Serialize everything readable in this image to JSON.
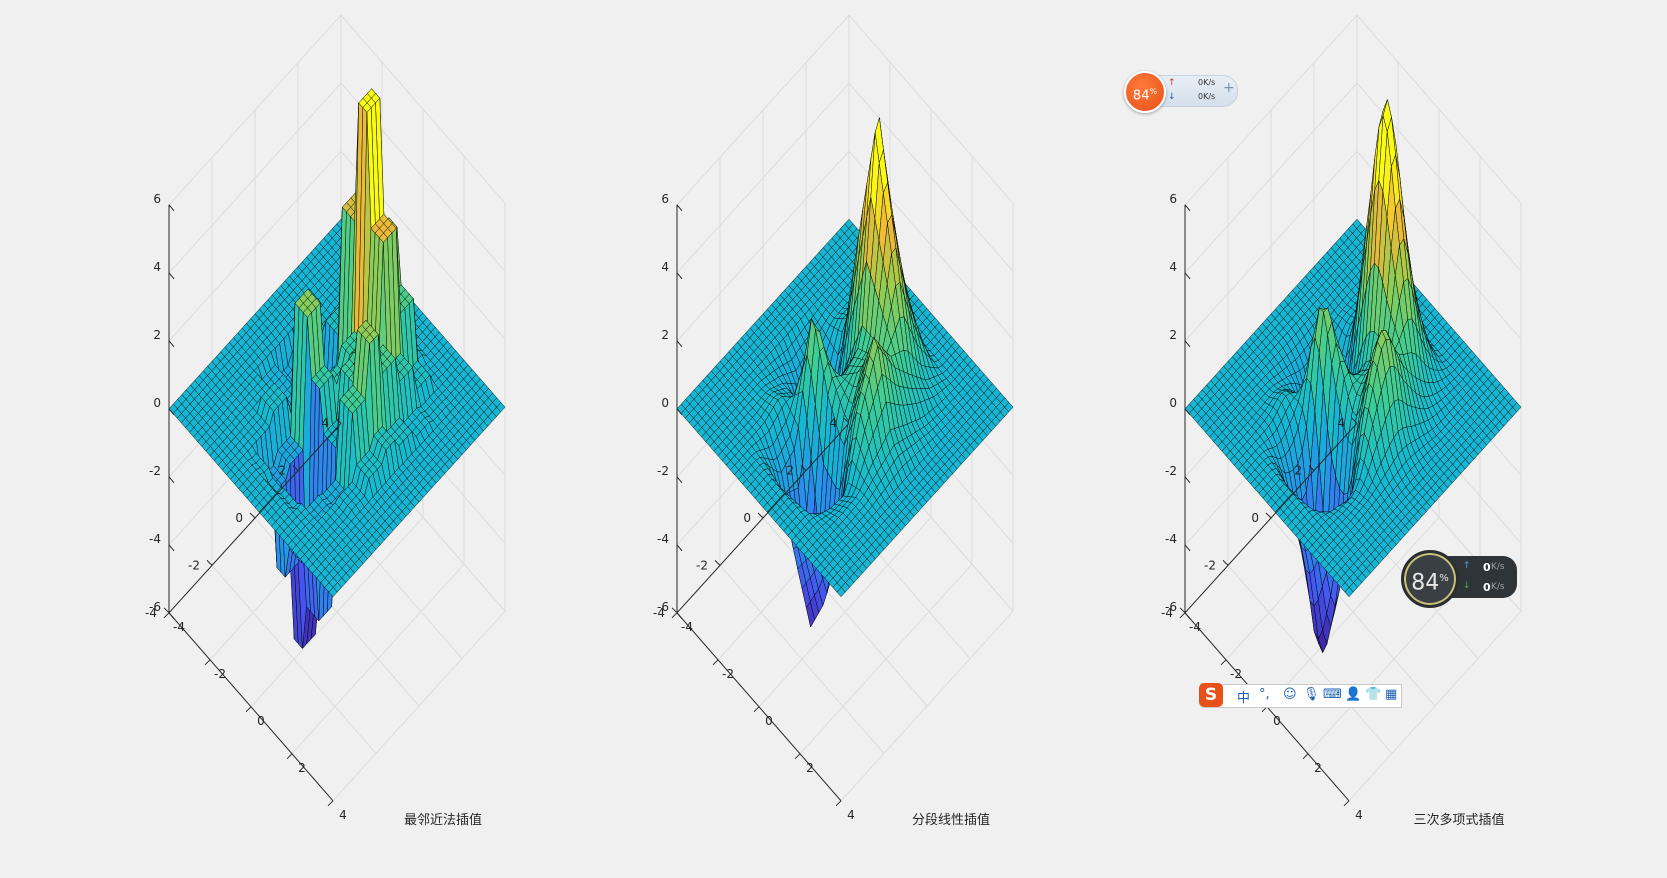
{
  "chart_data": [
    {
      "type": "surface",
      "title": "最邻近法插值",
      "method": "nearest",
      "xlim": [
        -4,
        4
      ],
      "ylim": [
        -4,
        4
      ],
      "zlim": [
        -6,
        6
      ],
      "xticks": [
        "-4",
        "-2",
        "0",
        "2",
        "4"
      ],
      "yticks": [
        "-4",
        "-2",
        "0",
        "2",
        "4"
      ],
      "zticks": [
        "-6",
        "-4",
        "-2",
        "0",
        "2",
        "4",
        "6"
      ],
      "grid": true,
      "colormap": "parula",
      "zmax_approx": 6.2,
      "zmin_approx": -5.5
    },
    {
      "type": "surface",
      "title": "分段线性插值",
      "method": "linear",
      "xlim": [
        -4,
        4
      ],
      "ylim": [
        -4,
        4
      ],
      "zlim": [
        -6,
        6
      ],
      "xticks": [
        "-4",
        "-2",
        "0",
        "2",
        "4"
      ],
      "yticks": [
        "-4",
        "-2",
        "0",
        "2",
        "4"
      ],
      "zticks": [
        "-6",
        "-4",
        "-2",
        "0",
        "2",
        "4",
        "6"
      ],
      "grid": true,
      "colormap": "parula",
      "zmax_approx": 6.0,
      "zmin_approx": -5.5
    },
    {
      "type": "surface",
      "title": "三次多项式插值",
      "method": "cubic",
      "xlim": [
        -4,
        4
      ],
      "ylim": [
        -4,
        4
      ],
      "zlim": [
        -6,
        6
      ],
      "xticks": [
        "-4",
        "-2",
        "0",
        "2",
        "4"
      ],
      "yticks": [
        "-4",
        "-2",
        "0",
        "2",
        "4"
      ],
      "zticks": [
        "-6",
        "-4",
        "-2",
        "0",
        "2",
        "4",
        "6"
      ],
      "grid": true,
      "colormap": "parula",
      "zmax_approx": 6.3,
      "zmin_approx": -5.5
    }
  ],
  "widgets": {
    "net_top": {
      "percent": "84",
      "percent_unit": "%",
      "up": "0K/s",
      "down": "0K/s",
      "plus": "+"
    },
    "net_dark": {
      "percent": "84",
      "percent_unit": "%",
      "up_value": "0",
      "down_value": "0",
      "unit": "K/s"
    },
    "ime": {
      "logo": "S",
      "items": [
        "中",
        "°,",
        "☺",
        "🎙",
        "⌨",
        "👤",
        "👕",
        "▦"
      ]
    }
  },
  "colors": {
    "background": "#f0f0f0",
    "axes_background": "#ffffff",
    "mesh_edge": "#000000"
  }
}
